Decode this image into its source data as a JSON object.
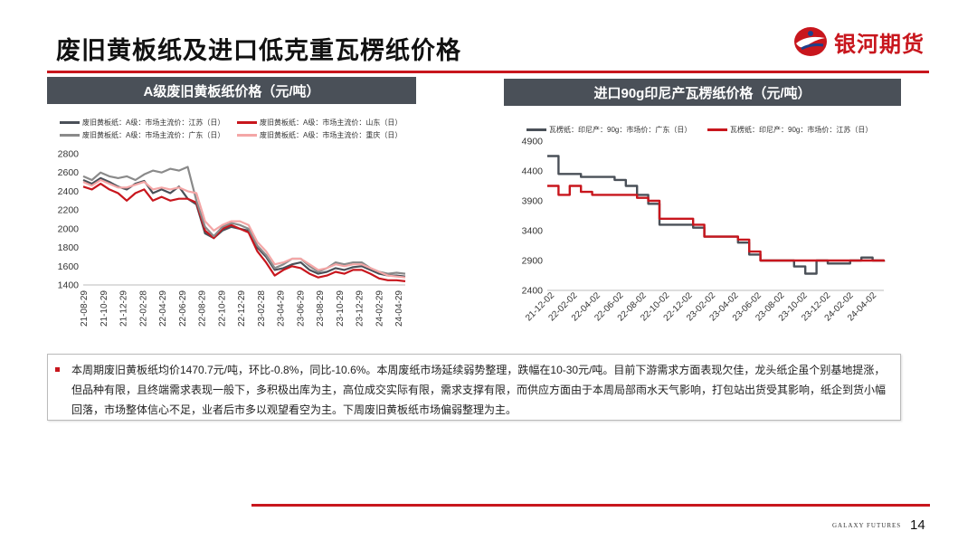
{
  "page": {
    "title": "废旧黄板纸及进口低克重瓦楞纸价格",
    "brand": "银河期货",
    "footer_brand": "GALAXY FUTURES",
    "page_number": "14",
    "accent_color": "#c8161d"
  },
  "note": {
    "text": "本周期废旧黄板纸均价1470.7元/吨，环比-0.8%，同比-10.6%。本周废纸市场延续弱势整理，跌幅在10-30元/吨。目前下游需求方面表现欠佳，龙头纸企虽个别基地提涨，但品种有限，且终端需求表现一般下，多积极出库为主，高位成交实际有限，需求支撑有限，而供应方面由于本周局部雨水天气影响，打包站出货受其影响，纸企到货小幅回落，市场整体信心不足，业者后市多以观望看空为主。下周废旧黄板纸市场偏弱整理为主。"
  },
  "chart_data": [
    {
      "type": "line",
      "title": "A级废旧黄板纸价格（元/吨）",
      "ylim": [
        1400,
        2800
      ],
      "yticks": [
        1400,
        1600,
        1800,
        2000,
        2200,
        2400,
        2600,
        2800
      ],
      "xticks": [
        "21-08-29",
        "21-10-29",
        "21-12-29",
        "22-02-28",
        "22-04-29",
        "22-06-29",
        "22-08-29",
        "22-10-29",
        "22-12-29",
        "23-02-28",
        "23-04-29",
        "23-06-29",
        "23-08-29",
        "23-10-29",
        "23-12-29",
        "24-02-29",
        "24-04-29"
      ],
      "legend_position": "top",
      "grid": false,
      "series": [
        {
          "name": "废旧黄板纸：A级：市场主流价：江苏（日）",
          "color": "#4a5058",
          "width": 2.2,
          "values": [
            2520,
            2480,
            2540,
            2500,
            2450,
            2420,
            2480,
            2510,
            2380,
            2420,
            2380,
            2450,
            2320,
            2260,
            1950,
            1900,
            1980,
            2020,
            2000,
            1980,
            1800,
            1700,
            1560,
            1580,
            1620,
            1640,
            1560,
            1520,
            1540,
            1580,
            1560,
            1590,
            1600,
            1560,
            1520,
            1500,
            1500,
            1490
          ]
        },
        {
          "name": "废旧黄板纸：A级：市场主流价：山东（日）",
          "color": "#c8161d",
          "width": 2.2,
          "values": [
            2450,
            2420,
            2480,
            2420,
            2380,
            2300,
            2380,
            2420,
            2300,
            2340,
            2300,
            2320,
            2320,
            2280,
            1980,
            1900,
            2000,
            2040,
            2000,
            1960,
            1760,
            1640,
            1500,
            1560,
            1600,
            1580,
            1520,
            1480,
            1500,
            1540,
            1520,
            1560,
            1560,
            1520,
            1470,
            1450,
            1450,
            1440
          ]
        },
        {
          "name": "废旧黄板纸：A级：市场主流价：广东（日）",
          "color": "#8a8a8a",
          "width": 2.2,
          "values": [
            2560,
            2520,
            2600,
            2560,
            2540,
            2560,
            2520,
            2580,
            2620,
            2600,
            2640,
            2620,
            2660,
            2300,
            2020,
            1920,
            2020,
            2060,
            2040,
            2000,
            1820,
            1720,
            1580,
            1620,
            1680,
            1680,
            1600,
            1540,
            1580,
            1640,
            1620,
            1640,
            1640,
            1580,
            1540,
            1520,
            1530,
            1520
          ]
        },
        {
          "name": "废旧黄板纸：A级：市场主流价：重庆（日）",
          "color": "#f4a6a6",
          "width": 2.2,
          "values": [
            2500,
            2460,
            2520,
            2480,
            2440,
            2440,
            2470,
            2500,
            2420,
            2440,
            2420,
            2440,
            2400,
            2380,
            2080,
            1980,
            2040,
            2080,
            2080,
            2040,
            1860,
            1760,
            1620,
            1640,
            1680,
            1680,
            1620,
            1560,
            1580,
            1620,
            1600,
            1620,
            1620,
            1580,
            1540,
            1500,
            1490,
            1480
          ]
        }
      ]
    },
    {
      "type": "line",
      "title": "进口90g印尼产瓦楞纸价格（元/吨）",
      "ylim": [
        2400,
        4900
      ],
      "yticks": [
        2400,
        2900,
        3400,
        3900,
        4400,
        4900
      ],
      "xticks": [
        "21-12-02",
        "22-02-02",
        "22-04-02",
        "22-06-02",
        "22-08-02",
        "22-10-02",
        "22-12-02",
        "23-02-02",
        "23-04-02",
        "23-06-02",
        "23-08-02",
        "23-10-02",
        "23-12-02",
        "24-02-02",
        "24-04-02"
      ],
      "legend_position": "top",
      "grid": false,
      "series": [
        {
          "name": "瓦楞纸：印尼产：90g：市场价：广东（日）",
          "color": "#4a5058",
          "width": 2.4,
          "values": [
            4650,
            4350,
            4350,
            4300,
            4300,
            4300,
            4250,
            4150,
            4000,
            3850,
            3500,
            3500,
            3500,
            3450,
            3300,
            3300,
            3300,
            3200,
            3000,
            2900,
            2900,
            2900,
            2800,
            2680,
            2900,
            2850,
            2850,
            2900,
            2950,
            2900,
            2880
          ]
        },
        {
          "name": "瓦楞纸：印尼产：90g：市场价：江苏（日）",
          "color": "#c8161d",
          "width": 2.4,
          "values": [
            4150,
            4000,
            4150,
            4050,
            4000,
            4000,
            4000,
            4000,
            3950,
            3900,
            3600,
            3600,
            3600,
            3500,
            3300,
            3300,
            3300,
            3250,
            3050,
            2900,
            2900,
            2900,
            2900,
            2900,
            2900,
            2900,
            2900,
            2900,
            2900,
            2900,
            2880
          ]
        }
      ]
    }
  ]
}
